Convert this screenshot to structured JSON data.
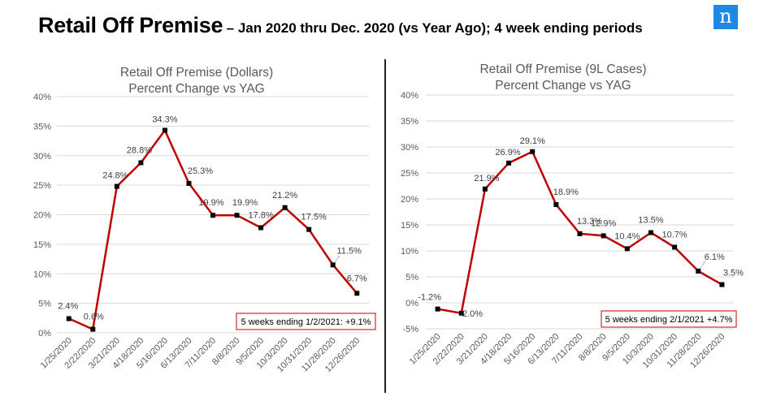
{
  "slide": {
    "title": "Retail Off Premise",
    "subtitle": "– Jan 2020 thru Dec. 2020 (vs Year Ago); 4 week ending periods",
    "logo_letter": "n",
    "accent_color": "#1e88e5"
  },
  "chart_data": [
    {
      "type": "line",
      "title": [
        "Retail Off Premise (Dollars)",
        "Percent Change vs YAG"
      ],
      "x": [
        "1/25/2020",
        "2/22/2020",
        "3/21/2020",
        "4/18/2020",
        "5/16/2020",
        "6/13/2020",
        "7/11/2020",
        "8/8/2020",
        "9/5/2020",
        "10/3/2020",
        "10/31/2020",
        "11/28/2020",
        "12/26/2020"
      ],
      "values": [
        2.4,
        0.6,
        24.8,
        28.8,
        34.3,
        25.3,
        19.9,
        19.9,
        17.8,
        21.2,
        17.5,
        11.5,
        6.7
      ],
      "data_labels": [
        "2.4%",
        "0.6%",
        "24.8%",
        "28.8%",
        "34.3%",
        "25.3%",
        "19.9%",
        "19.9%",
        "17.8%",
        "21.2%",
        "17.5%",
        "11.5%",
        "6.7%"
      ],
      "y_ticks": [
        "0%",
        "5%",
        "10%",
        "15%",
        "20%",
        "25%",
        "30%",
        "35%",
        "40%"
      ],
      "ylim": [
        0,
        40
      ],
      "grid": true,
      "line_color": "#c00000",
      "note": "5 weeks ending 1/2/2021: +9.1%",
      "note_border_color": "#c00000"
    },
    {
      "type": "line",
      "title": [
        "Retail Off Premise (9L Cases)",
        "Percent Change vs YAG"
      ],
      "x": [
        "1/25/2020",
        "2/22/2020",
        "3/21/2020",
        "4/18/2020",
        "5/16/2020",
        "6/13/2020",
        "7/11/2020",
        "8/8/2020",
        "9/5/2020",
        "10/3/2020",
        "10/31/2020",
        "11/28/2020",
        "12/26/2020"
      ],
      "values": [
        -1.2,
        -2.0,
        21.9,
        26.9,
        29.1,
        18.9,
        13.3,
        12.9,
        10.4,
        13.5,
        10.7,
        6.1,
        3.5
      ],
      "data_labels": [
        "-1.2%",
        "-2.0%",
        "21.9%",
        "26.9%",
        "29.1%",
        "18.9%",
        "13.3%",
        "12.9%",
        "10.4%",
        "13.5%",
        "10.7%",
        "6.1%",
        "3.5%"
      ],
      "y_ticks": [
        "-5%",
        "0%",
        "5%",
        "10%",
        "15%",
        "20%",
        "25%",
        "30%",
        "35%",
        "40%"
      ],
      "ylim": [
        -5,
        40
      ],
      "grid": true,
      "line_color": "#c00000",
      "note": "5 weeks ending 2/1/2021 +4.7%",
      "note_border_color": "#c00000"
    }
  ]
}
